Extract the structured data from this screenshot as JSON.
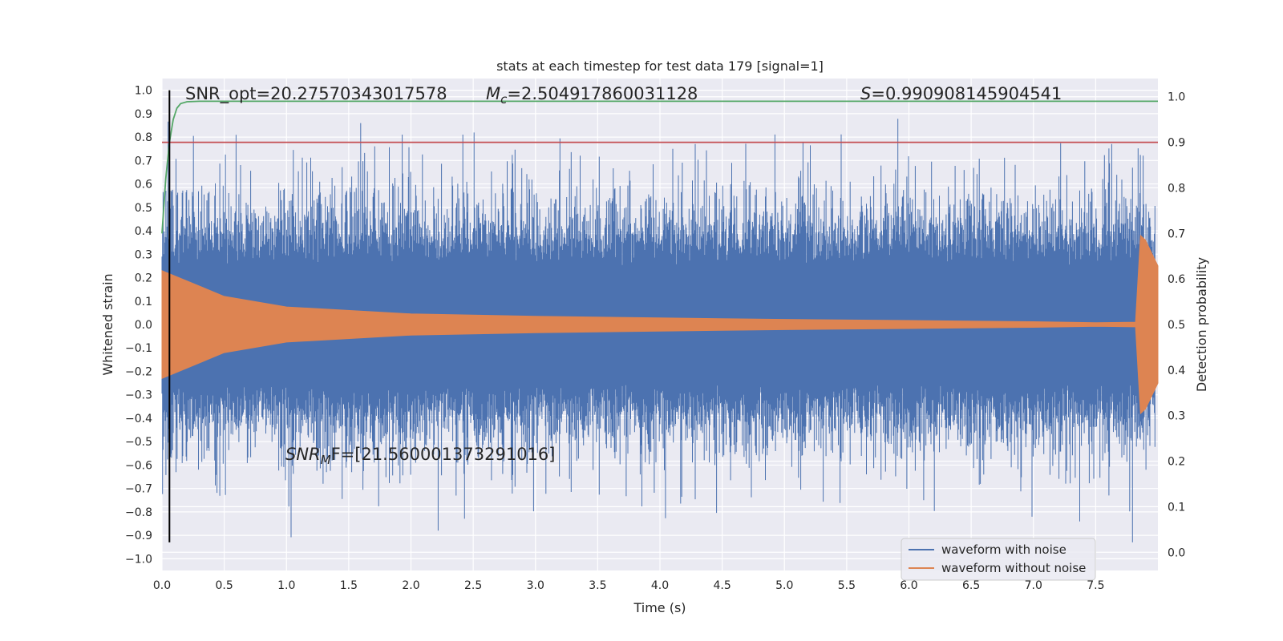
{
  "chart_data": {
    "type": "line",
    "title": "stats at each timestep for test data 179 [signal=1]",
    "xlabel": "Time (s)",
    "ylabel": "Whitened strain",
    "ylabel_right": "Detection probability",
    "xlim": [
      0.0,
      8.0
    ],
    "ylim": [
      -1.05,
      1.05
    ],
    "ylim_right": [
      -0.04,
      1.04
    ],
    "x_ticks": [
      "0.0",
      "0.5",
      "1.0",
      "1.5",
      "2.0",
      "2.5",
      "3.0",
      "3.5",
      "4.0",
      "4.5",
      "5.0",
      "5.5",
      "6.0",
      "6.5",
      "7.0",
      "7.5"
    ],
    "y_ticks": [
      "1.0",
      "0.9",
      "0.8",
      "0.7",
      "0.6",
      "0.5",
      "0.4",
      "0.3",
      "0.2",
      "0.1",
      "0.0",
      "−0.1",
      "−0.2",
      "−0.3",
      "−0.4",
      "−0.5",
      "−0.6",
      "−0.7",
      "−0.8",
      "−0.9",
      "−1.0"
    ],
    "y_ticks_right": [
      "1.0",
      "0.9",
      "0.8",
      "0.7",
      "0.6",
      "0.5",
      "0.4",
      "0.3",
      "0.2",
      "0.1",
      "0.0"
    ],
    "grid": true,
    "legend_position": "lower-right",
    "annotations": {
      "snr_opt": "SNR_opt=20.27570343017578",
      "mc": "=2.504917860031128",
      "s": "=0.990908145904541",
      "snr_mf": "F=[21.560001373291016]"
    },
    "series": [
      {
        "name": "waveform with noise",
        "color": "#4c72b0",
        "axis": "left",
        "description_values": {
          "noise_peak_positive": 0.99,
          "noise_peak_negative": -0.93,
          "typical_amplitude": 0.35
        }
      },
      {
        "name": "waveform without noise",
        "color": "#dd8452",
        "axis": "left",
        "envelope": {
          "x": [
            0.0,
            0.5,
            1.0,
            2.0,
            3.0,
            4.0,
            5.0,
            6.0,
            7.0,
            7.5,
            7.82,
            7.86,
            7.9,
            8.0
          ],
          "y": [
            0.23,
            0.12,
            0.075,
            0.045,
            0.035,
            0.028,
            0.022,
            0.017,
            0.012,
            0.008,
            0.01,
            0.38,
            0.36,
            0.25
          ]
        }
      },
      {
        "name": "",
        "color": "#55a868",
        "axis": "right",
        "x": [
          0.0,
          0.03,
          0.06,
          0.09,
          0.12,
          0.15,
          0.2,
          0.3,
          1.0,
          8.0
        ],
        "y": [
          0.7,
          0.82,
          0.9,
          0.95,
          0.975,
          0.985,
          0.989,
          0.99,
          0.99,
          0.99
        ]
      },
      {
        "name": "",
        "color": "#c44e52",
        "axis": "right",
        "x": [
          0.0,
          8.0
        ],
        "y": [
          0.9,
          0.9
        ]
      },
      {
        "name": "",
        "color": "#000000",
        "axis": "left",
        "type": "vline",
        "x": [
          0.06,
          0.06
        ],
        "y": [
          -0.93,
          1.0
        ]
      }
    ]
  }
}
